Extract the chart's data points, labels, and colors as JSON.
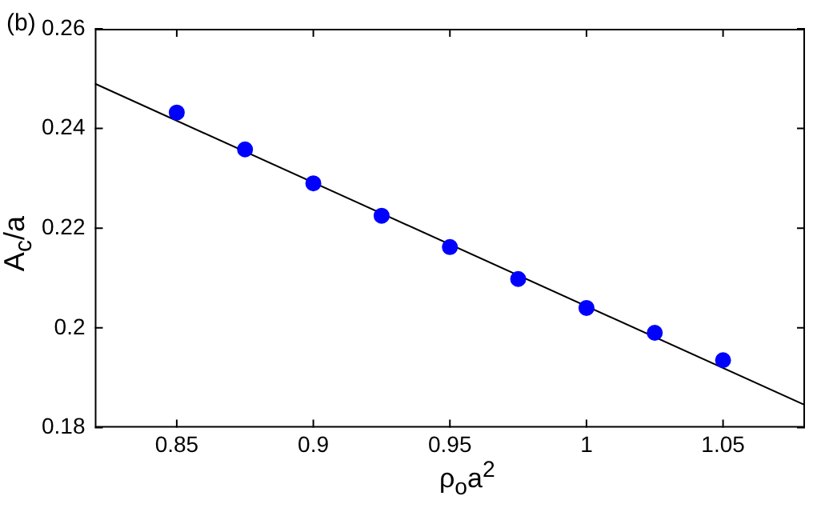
{
  "chart_data": {
    "type": "scatter",
    "xlabel": "ρ$_{o}$a$^{2}$",
    "ylabel": "A$_{c}$/a",
    "annotations": [
      "(b)"
    ],
    "x": [
      0.85,
      0.875,
      0.9,
      0.925,
      0.95,
      0.975,
      1.0,
      1.025,
      1.05
    ],
    "series": [
      {
        "color": "#0000ff",
        "marker": "circle",
        "values": [
          0.2432,
          0.2358,
          0.229,
          0.2225,
          0.2162,
          0.2098,
          0.204,
          0.199,
          0.1935
        ]
      },
      {
        "type": "line",
        "color": "#000000",
        "marker": "none",
        "x": [
          0.82,
          1.08
        ],
        "values": [
          0.249,
          0.1845
        ]
      }
    ],
    "xlim": [
      0.82,
      1.08
    ],
    "xticks": [
      0.85,
      0.9,
      0.95,
      1,
      1.05
    ],
    "ylim": [
      0.18,
      0.26
    ],
    "yticks": [
      0.18,
      0.2,
      0.22,
      0.24,
      0.26
    ],
    "grid": false,
    "legend": false,
    "line_style": "solid"
  }
}
